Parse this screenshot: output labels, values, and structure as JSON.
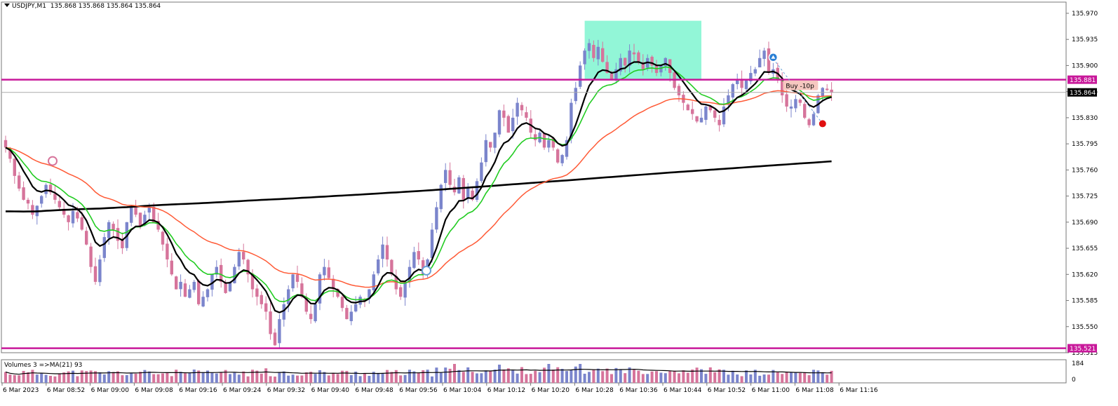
{
  "header": {
    "symbol": "USDJPY,M1",
    "ohlc": "135.868 135.868 135.864 135.864"
  },
  "volume_panel": {
    "label": "Volumes 3  =>MA(21) 93",
    "axis_labels": [
      "184",
      "0"
    ]
  },
  "trade_label": "Buy -10p",
  "colors": {
    "bull": "#7b85cc",
    "bear": "#d6749b",
    "ma_green": "#22cc22",
    "ma_black": "#000000",
    "ma_orange": "#ff5a36",
    "level": "#c8189a",
    "zone": "#7ff5d0",
    "price_tag": "#000000"
  },
  "chart_data": {
    "type": "candlestick",
    "symbol": "USDJPY",
    "timeframe": "M1",
    "ylim": [
      135.515,
      135.985
    ],
    "y_ticks": [
      "135.970",
      "135.935",
      "135.900",
      "135.865",
      "135.830",
      "135.795",
      "135.760",
      "135.725",
      "135.690",
      "135.655",
      "135.620",
      "135.585",
      "135.550",
      "135.515"
    ],
    "x_ticks": [
      "6 Mar 2023",
      "6 Mar 08:52",
      "6 Mar 09:00",
      "6 Mar 09:08",
      "6 Mar 09:16",
      "6 Mar 09:24",
      "6 Mar 09:32",
      "6 Mar 09:40",
      "6 Mar 09:48",
      "6 Mar 09:56",
      "6 Mar 10:04",
      "6 Mar 10:12",
      "6 Mar 10:20",
      "6 Mar 10:28",
      "6 Mar 10:36",
      "6 Mar 10:44",
      "6 Mar 10:52",
      "6 Mar 11:00",
      "6 Mar 11:08",
      "6 Mar 11:16"
    ],
    "current_price": "135.864",
    "levels": [
      {
        "value": 135.881,
        "label": "135.881"
      },
      {
        "value": 135.521,
        "label": "135.521"
      }
    ],
    "zone": {
      "start_index": 129,
      "end_index": 155,
      "y_low": 135.88,
      "y_high": 135.96
    },
    "buy_marker_index": 171,
    "exit_marker_index": 182,
    "closes": [
      135.79,
      135.775,
      135.752,
      135.735,
      135.72,
      135.715,
      135.7,
      135.712,
      135.725,
      135.74,
      135.73,
      135.72,
      135.71,
      135.7,
      135.69,
      135.705,
      135.695,
      135.68,
      135.66,
      135.63,
      135.61,
      135.64,
      135.67,
      135.69,
      135.68,
      135.665,
      135.655,
      135.69,
      135.71,
      135.7,
      135.685,
      135.7,
      135.71,
      135.69,
      135.68,
      135.66,
      135.64,
      135.62,
      135.6,
      135.61,
      135.59,
      135.6,
      135.61,
      135.58,
      135.59,
      135.6,
      135.62,
      135.63,
      135.61,
      135.595,
      135.61,
      135.63,
      135.65,
      135.64,
      135.62,
      135.6,
      135.59,
      135.58,
      135.57,
      135.54,
      135.525,
      135.56,
      135.58,
      135.6,
      135.62,
      135.61,
      135.59,
      135.57,
      135.56,
      135.58,
      135.62,
      135.63,
      135.615,
      135.6,
      135.59,
      135.575,
      135.56,
      135.57,
      135.58,
      135.59,
      135.585,
      135.6,
      135.62,
      135.64,
      135.66,
      135.64,
      135.62,
      135.6,
      135.59,
      135.61,
      135.63,
      135.65,
      135.64,
      135.62,
      135.64,
      135.68,
      135.71,
      135.74,
      135.76,
      135.74,
      135.73,
      135.75,
      135.72,
      135.735,
      135.72,
      135.745,
      135.77,
      135.8,
      135.79,
      135.81,
      135.84,
      135.83,
      135.81,
      135.83,
      135.85,
      135.84,
      135.83,
      135.81,
      135.8,
      135.81,
      135.79,
      135.8,
      135.79,
      135.77,
      135.78,
      135.8,
      135.85,
      135.87,
      135.9,
      135.92,
      135.93,
      135.91,
      135.925,
      135.905,
      135.89,
      135.88,
      135.895,
      135.91,
      135.9,
      135.92,
      135.915,
      135.905,
      135.895,
      135.91,
      135.9,
      135.89,
      135.9,
      135.91,
      135.89,
      135.87,
      135.86,
      135.85,
      135.84,
      135.835,
      135.825,
      135.83,
      135.845,
      135.84,
      135.83,
      135.82,
      135.845,
      135.86,
      135.875,
      135.88,
      135.87,
      135.88,
      135.89,
      135.895,
      135.91,
      135.92,
      135.89,
      135.895,
      135.88,
      135.86,
      135.845,
      135.845,
      135.855,
      135.85,
      135.83,
      135.82,
      135.835,
      135.86,
      135.87,
      135.867,
      135.864
    ],
    "volume_ma": 93,
    "volume_max": 184
  }
}
